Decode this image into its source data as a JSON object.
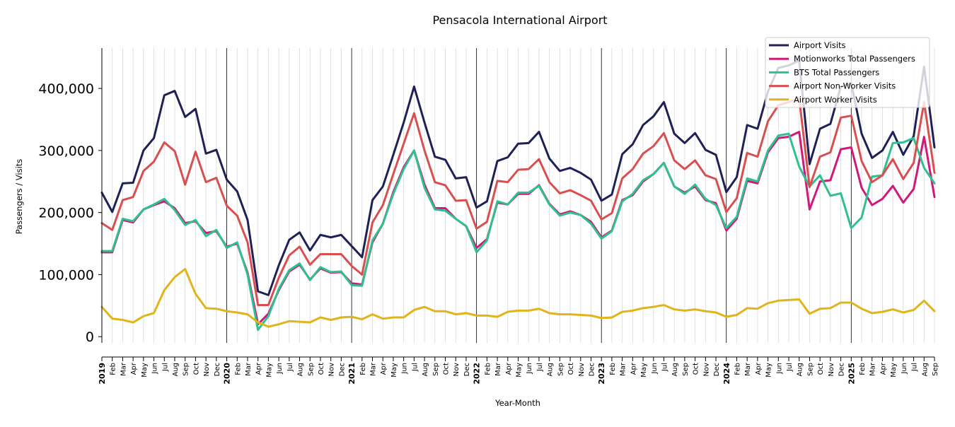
{
  "chart_data": {
    "type": "line",
    "title": "Pensacola International Airport",
    "xlabel": "Year-Month",
    "ylabel": "Passengers / Visits",
    "ylim": [
      -10000,
      465000
    ],
    "y_ticks": [
      0,
      100000,
      200000,
      300000,
      400000
    ],
    "y_tick_labels": [
      "0",
      "100,000",
      "200,000",
      "300,000",
      "400,000"
    ],
    "grid": "vertical lines at each month (light), year boundaries (dark)",
    "legend_position": "top-right",
    "x": [
      "2019-01",
      "2019-02",
      "2019-03",
      "2019-04",
      "2019-05",
      "2019-06",
      "2019-07",
      "2019-08",
      "2019-09",
      "2019-10",
      "2019-11",
      "2019-12",
      "2020-01",
      "2020-02",
      "2020-03",
      "2020-04",
      "2020-05",
      "2020-06",
      "2020-07",
      "2020-08",
      "2020-09",
      "2020-10",
      "2020-11",
      "2020-12",
      "2021-01",
      "2021-02",
      "2021-03",
      "2021-04",
      "2021-05",
      "2021-06",
      "2021-07",
      "2021-08",
      "2021-09",
      "2021-10",
      "2021-11",
      "2021-12",
      "2022-01",
      "2022-02",
      "2022-03",
      "2022-04",
      "2022-05",
      "2022-06",
      "2022-07",
      "2022-08",
      "2022-09",
      "2022-10",
      "2022-11",
      "2022-12",
      "2023-01",
      "2023-02",
      "2023-03",
      "2023-04",
      "2023-05",
      "2023-06",
      "2023-07",
      "2023-08",
      "2023-09",
      "2023-10",
      "2023-11",
      "2023-12",
      "2024-01",
      "2024-02",
      "2024-03",
      "2024-04",
      "2024-05",
      "2024-06",
      "2024-07",
      "2024-08",
      "2024-09",
      "2024-10",
      "2024-11",
      "2024-12",
      "2025-01",
      "2025-02",
      "2025-03",
      "2025-04",
      "2025-05",
      "2025-06",
      "2025-07",
      "2025-08",
      "2025-09"
    ],
    "x_tick_labels": [
      "2019",
      "Feb",
      "Mar",
      "Apr",
      "May",
      "Jun",
      "Jul",
      "Aug",
      "Sep",
      "Oct",
      "Nov",
      "Dec",
      "2020",
      "Feb",
      "Mar",
      "Apr",
      "May",
      "Jun",
      "Jul",
      "Aug",
      "Sep",
      "Oct",
      "Nov",
      "Dec",
      "2021",
      "Feb",
      "Mar",
      "Apr",
      "May",
      "Jun",
      "Jul",
      "Aug",
      "Sep",
      "Oct",
      "Nov",
      "Dec",
      "2022",
      "Feb",
      "Mar",
      "Apr",
      "May",
      "Jun",
      "Jul",
      "Aug",
      "Sep",
      "Oct",
      "Nov",
      "Dec",
      "2023",
      "Feb",
      "Mar",
      "Apr",
      "May",
      "Jun",
      "Jul",
      "Aug",
      "Sep",
      "Oct",
      "Nov",
      "Dec",
      "2024",
      "Feb",
      "Mar",
      "Apr",
      "May",
      "Jun",
      "Jul",
      "Aug",
      "Sep",
      "Oct",
      "Nov",
      "Dec",
      "2025",
      "Feb",
      "Mar",
      "Apr",
      "May",
      "Jun",
      "Jul",
      "Aug",
      "Sep"
    ],
    "series": [
      {
        "name": "Airport Visits",
        "color": "#1f2156",
        "values": [
          232000,
          201000,
          247000,
          248000,
          300000,
          320000,
          389000,
          396000,
          354000,
          367000,
          295000,
          301000,
          253000,
          234000,
          188000,
          73000,
          67000,
          115000,
          156000,
          168000,
          139000,
          164000,
          160000,
          164000,
          146000,
          128000,
          220000,
          242000,
          293000,
          345000,
          403000,
          345000,
          290000,
          285000,
          255000,
          257000,
          208000,
          218000,
          283000,
          289000,
          311000,
          312000,
          330000,
          287000,
          267000,
          272000,
          264000,
          253000,
          219000,
          229000,
          294000,
          310000,
          341000,
          355000,
          378000,
          327000,
          312000,
          328000,
          301000,
          293000,
          233000,
          257000,
          341000,
          335000,
          395000,
          433000,
          437000,
          445000,
          278000,
          335000,
          343000,
          403000,
          408000,
          327000,
          288000,
          300000,
          330000,
          293000,
          323000,
          435000,
          305000
        ]
      },
      {
        "name": "Motionworks Total Passengers",
        "color": "#d0197a",
        "values": [
          136000,
          136000,
          188000,
          184000,
          205000,
          212000,
          218000,
          207000,
          183000,
          186000,
          167000,
          170000,
          145000,
          150000,
          103000,
          20000,
          37000,
          75000,
          105000,
          116000,
          92000,
          110000,
          103000,
          104000,
          86000,
          84000,
          152000,
          182000,
          233000,
          273000,
          300000,
          245000,
          207000,
          207000,
          190000,
          178000,
          143000,
          157000,
          216000,
          213000,
          230000,
          230000,
          244000,
          214000,
          197000,
          202000,
          196000,
          185000,
          160000,
          171000,
          220000,
          228000,
          250000,
          262000,
          280000,
          242000,
          232000,
          242000,
          220000,
          215000,
          171000,
          190000,
          251000,
          247000,
          297000,
          320000,
          322000,
          330000,
          205000,
          250000,
          252000,
          302000,
          305000,
          240000,
          212000,
          222000,
          243000,
          216000,
          238000,
          322000,
          225000
        ]
      },
      {
        "name": "BTS Total Passengers",
        "color": "#2ec08e",
        "values": [
          138000,
          138000,
          190000,
          186000,
          205000,
          213000,
          222000,
          204000,
          180000,
          188000,
          162000,
          172000,
          143000,
          152000,
          100000,
          11000,
          33000,
          77000,
          107000,
          118000,
          91000,
          112000,
          104000,
          105000,
          83000,
          82000,
          155000,
          182000,
          230000,
          270000,
          300000,
          240000,
          205000,
          203000,
          190000,
          178000,
          136000,
          155000,
          218000,
          213000,
          232000,
          232000,
          243000,
          213000,
          195000,
          200000,
          196000,
          182000,
          158000,
          170000,
          218000,
          230000,
          252000,
          262000,
          280000,
          242000,
          230000,
          245000,
          222000,
          212000,
          175000,
          193000,
          255000,
          250000,
          300000,
          324000,
          327000,
          274000,
          242000,
          260000,
          227000,
          231000,
          175000,
          192000,
          258000,
          260000,
          312000,
          313000,
          320000,
          272000,
          247000
        ]
      },
      {
        "name": "Airport Non-Worker Visits",
        "color": "#d94f4f",
        "values": [
          183000,
          172000,
          220000,
          225000,
          267000,
          282000,
          313000,
          299000,
          245000,
          298000,
          249000,
          256000,
          211000,
          195000,
          152000,
          51000,
          51000,
          95000,
          131000,
          145000,
          116000,
          133000,
          133000,
          133000,
          114000,
          100000,
          184000,
          212000,
          262000,
          311000,
          360000,
          300000,
          249000,
          244000,
          219000,
          220000,
          174000,
          185000,
          251000,
          249000,
          269000,
          270000,
          286000,
          249000,
          231000,
          236000,
          228000,
          219000,
          189000,
          199000,
          255000,
          270000,
          295000,
          307000,
          328000,
          284000,
          270000,
          284000,
          260000,
          254000,
          201000,
          223000,
          296000,
          290000,
          347000,
          373000,
          378000,
          384000,
          241000,
          290000,
          297000,
          353000,
          356000,
          283000,
          249000,
          260000,
          286000,
          254000,
          280000,
          378000,
          264000
        ]
      },
      {
        "name": "Airport Worker Visits",
        "color": "#e0b41a",
        "values": [
          48000,
          29000,
          27000,
          23000,
          33000,
          38000,
          75000,
          96000,
          109000,
          69000,
          46000,
          45000,
          41000,
          39000,
          36000,
          23000,
          16000,
          20000,
          25000,
          24000,
          23000,
          31000,
          27000,
          31000,
          32000,
          28000,
          36000,
          29000,
          31000,
          31000,
          43000,
          48000,
          41000,
          41000,
          36000,
          38000,
          34000,
          34000,
          32000,
          40000,
          42000,
          42000,
          45000,
          38000,
          36000,
          36000,
          35000,
          34000,
          30000,
          31000,
          40000,
          42000,
          46000,
          48000,
          51000,
          44000,
          42000,
          44000,
          41000,
          39000,
          32000,
          35000,
          46000,
          45000,
          54000,
          58000,
          59000,
          60000,
          37000,
          45000,
          46000,
          55000,
          55000,
          45000,
          38000,
          40000,
          44000,
          39000,
          43000,
          58000,
          41000
        ]
      }
    ]
  }
}
